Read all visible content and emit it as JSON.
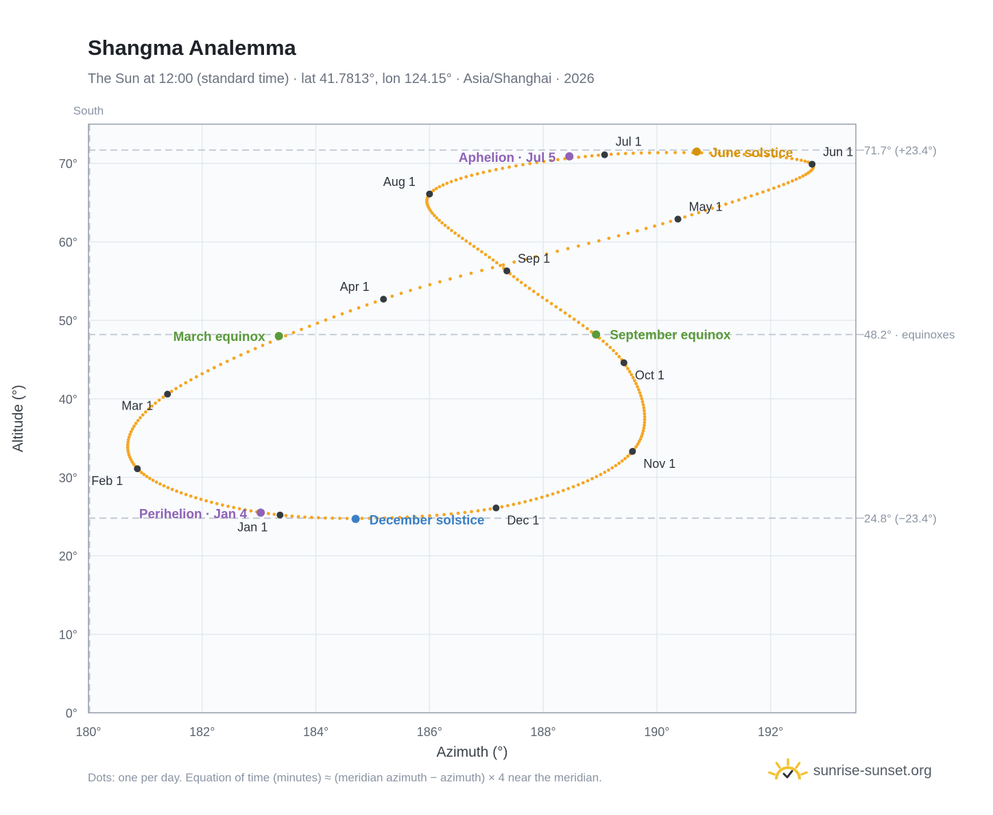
{
  "title": "Shangma Analemma",
  "subtitle": "The Sun at 12:00 (standard time) · lat 41.7813°, lon 124.15° · Asia/Shanghai · 2026",
  "footnote": "Dots: one per day. Equation of time (minutes) ≈ (meridian azimuth − azimuth) × 4 near the meridian.",
  "brand": "sunrise-sunset.org",
  "colors": {
    "curve": "#f5a623",
    "month_dot": "#343a40",
    "equinox": "#5a9a3a",
    "june_solstice": "#d4930d",
    "december_solstice": "#3b7fc4",
    "apsis": "#8e63b8",
    "grid": "#e5e9ee",
    "reference_line": "#c0c6ce",
    "plot_bg": "#f9fbfd",
    "brand_sun": "#f2c230"
  },
  "chart_data": {
    "type": "scatter",
    "xlabel": "Azimuth (°)",
    "ylabel": "Altitude (°)",
    "xlim": [
      180,
      193.5
    ],
    "ylim": [
      0,
      75
    ],
    "x_ticks": [
      180,
      182,
      184,
      186,
      188,
      190,
      192
    ],
    "x_tick_labels": [
      "180°",
      "182°",
      "184°",
      "186°",
      "188°",
      "190°",
      "192°"
    ],
    "y_ticks": [
      0,
      10,
      20,
      30,
      40,
      50,
      60,
      70
    ],
    "y_tick_labels": [
      "0°",
      "10°",
      "20°",
      "30°",
      "40°",
      "50°",
      "60°",
      "70°"
    ],
    "grid": true,
    "meridian": {
      "azimuth": 180,
      "label": "South"
    },
    "reference_lines": [
      {
        "altitude": 71.7,
        "label": "71.7° (+23.4°)"
      },
      {
        "altitude": 48.2,
        "label": "48.2° · equinoxes"
      },
      {
        "altitude": 24.8,
        "label": "24.8° (−23.4°)"
      }
    ],
    "daily_series": "one dot per day, path passing through the month markers below",
    "month_markers": [
      {
        "label": "Jan 1",
        "azimuth": 183.37,
        "altitude": 25.2
      },
      {
        "label": "Feb 1",
        "azimuth": 180.86,
        "altitude": 31.1
      },
      {
        "label": "Mar 1",
        "azimuth": 181.39,
        "altitude": 40.6
      },
      {
        "label": "Apr 1",
        "azimuth": 185.19,
        "altitude": 52.7
      },
      {
        "label": "May 1",
        "azimuth": 190.37,
        "altitude": 62.9
      },
      {
        "label": "Jun 1",
        "azimuth": 192.73,
        "altitude": 69.9
      },
      {
        "label": "Jul 1",
        "azimuth": 189.08,
        "altitude": 71.1
      },
      {
        "label": "Aug 1",
        "azimuth": 186.0,
        "altitude": 66.1
      },
      {
        "label": "Sep 1",
        "azimuth": 187.36,
        "altitude": 56.3
      },
      {
        "label": "Oct 1",
        "azimuth": 189.42,
        "altitude": 44.6
      },
      {
        "label": "Nov 1",
        "azimuth": 189.57,
        "altitude": 33.3
      },
      {
        "label": "Dec 1",
        "azimuth": 187.17,
        "altitude": 26.1
      }
    ],
    "events": [
      {
        "label": "March equinox",
        "azimuth": 183.35,
        "altitude": 48.0,
        "color_key": "equinox"
      },
      {
        "label": "September equinox",
        "azimuth": 188.93,
        "altitude": 48.2,
        "color_key": "equinox"
      },
      {
        "label": "June solstice",
        "azimuth": 190.7,
        "altitude": 71.5,
        "color_key": "june_solstice"
      },
      {
        "label": "December solstice",
        "azimuth": 184.7,
        "altitude": 24.7,
        "color_key": "december_solstice"
      },
      {
        "label": "Aphelion · Jul 5",
        "azimuth": 188.46,
        "altitude": 70.9,
        "color_key": "apsis"
      },
      {
        "label": "Perihelion · Jan 4",
        "azimuth": 183.03,
        "altitude": 25.5,
        "color_key": "apsis"
      }
    ]
  }
}
